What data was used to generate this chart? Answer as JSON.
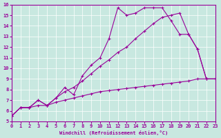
{
  "xlabel": "Windchill (Refroidissement éolien,°C)",
  "bg_color": "#c8e8e0",
  "line_color": "#990099",
  "grid_color": "#ffffff",
  "xlim": [
    0,
    23
  ],
  "ylim": [
    5,
    16
  ],
  "xticks": [
    0,
    1,
    2,
    3,
    4,
    5,
    6,
    7,
    8,
    9,
    10,
    11,
    12,
    13,
    14,
    15,
    16,
    17,
    18,
    19,
    20,
    21,
    22,
    23
  ],
  "yticks": [
    5,
    6,
    7,
    8,
    9,
    10,
    11,
    12,
    13,
    14,
    15,
    16
  ],
  "line1_x": [
    0,
    1,
    2,
    3,
    4,
    5,
    6,
    7,
    8,
    9,
    10,
    11,
    12,
    13,
    14,
    15,
    16,
    17,
    18,
    19,
    20,
    21,
    22,
    23
  ],
  "line1_y": [
    5.5,
    6.3,
    6.3,
    6.5,
    6.5,
    6.8,
    7.0,
    7.2,
    7.4,
    7.6,
    7.8,
    7.9,
    8.0,
    8.1,
    8.2,
    8.3,
    8.4,
    8.5,
    8.6,
    8.7,
    8.8,
    9.0,
    9.0,
    9.0
  ],
  "line2_x": [
    0,
    1,
    2,
    3,
    4,
    5,
    6,
    7,
    8,
    9,
    10,
    11,
    12,
    13,
    14,
    15,
    16,
    17,
    18,
    19,
    20,
    21,
    22,
    23
  ],
  "line2_y": [
    5.5,
    6.3,
    6.3,
    7.0,
    6.5,
    7.2,
    7.8,
    8.2,
    8.8,
    9.5,
    10.2,
    10.8,
    11.5,
    12.0,
    12.8,
    13.5,
    14.2,
    14.8,
    15.0,
    15.2,
    13.2,
    11.8,
    9.0,
    9.0
  ],
  "line3_x": [
    0,
    1,
    2,
    3,
    4,
    5,
    6,
    7,
    8,
    9,
    10,
    11,
    12,
    13,
    14,
    15,
    16,
    17,
    18,
    19,
    20,
    21,
    22,
    23
  ],
  "line3_y": [
    5.5,
    6.3,
    6.3,
    7.0,
    6.5,
    7.2,
    8.2,
    7.5,
    9.3,
    10.3,
    11.0,
    12.8,
    15.7,
    15.0,
    15.2,
    15.7,
    15.7,
    15.7,
    14.5,
    13.2,
    13.2,
    11.8,
    9.0,
    9.0
  ]
}
